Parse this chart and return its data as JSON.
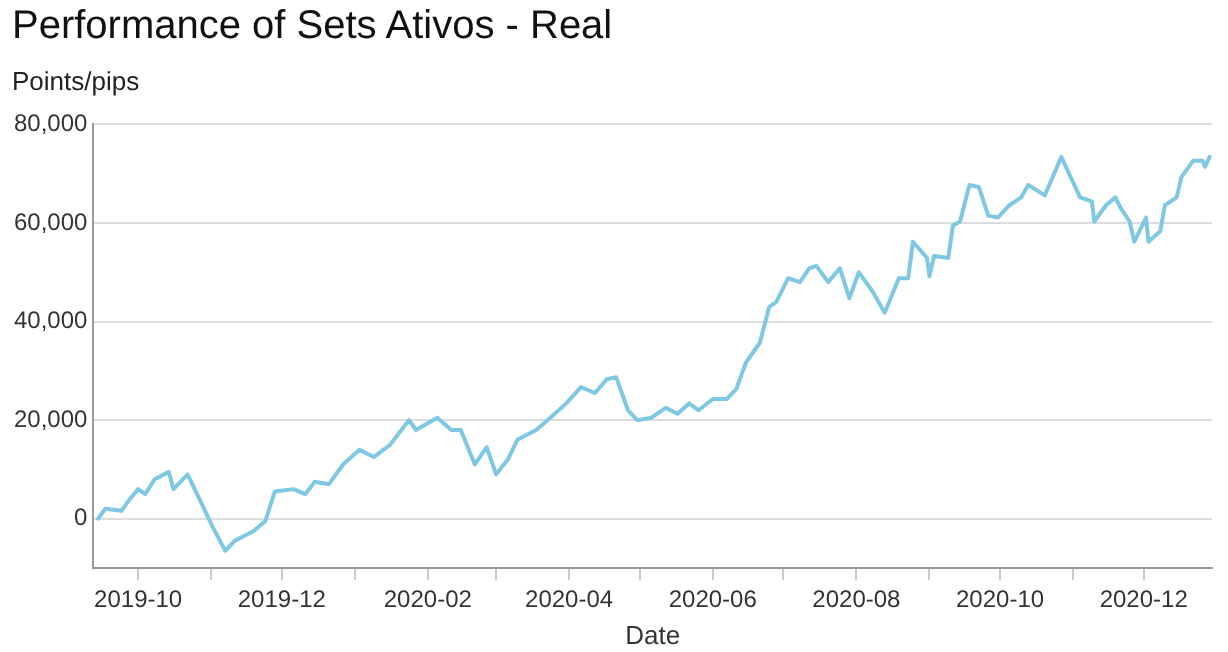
{
  "chart_data": {
    "type": "line",
    "title": "Performance of Sets Ativos - Real",
    "xlabel": "Date",
    "ylabel": "Points/pips",
    "x": [
      "2019-09-14",
      "2019-09-17",
      "2019-09-24",
      "2019-09-27",
      "2019-10-01",
      "2019-10-04",
      "2019-10-08",
      "2019-10-14",
      "2019-10-16",
      "2019-10-22",
      "2019-10-28",
      "2019-11-02",
      "2019-11-07",
      "2019-11-11",
      "2019-11-19",
      "2019-11-24",
      "2019-11-28",
      "2019-12-06",
      "2019-12-11",
      "2019-12-15",
      "2019-12-21",
      "2019-12-27",
      "2020-01-03",
      "2020-01-09",
      "2020-01-16",
      "2020-01-24",
      "2020-01-27",
      "2020-02-05",
      "2020-02-11",
      "2020-02-15",
      "2020-02-21",
      "2020-02-26",
      "2020-03-01",
      "2020-03-06",
      "2020-03-10",
      "2020-03-18",
      "2020-03-24",
      "2020-03-31",
      "2020-04-06",
      "2020-04-12",
      "2020-04-17",
      "2020-04-21",
      "2020-04-26",
      "2020-04-30",
      "2020-05-06",
      "2020-05-12",
      "2020-05-17",
      "2020-05-22",
      "2020-05-26",
      "2020-06-01",
      "2020-06-07",
      "2020-06-11",
      "2020-06-15",
      "2020-06-21",
      "2020-06-25",
      "2020-06-28",
      "2020-07-03",
      "2020-07-08",
      "2020-07-12",
      "2020-07-15",
      "2020-07-20",
      "2020-07-25",
      "2020-07-29",
      "2020-08-02",
      "2020-08-08",
      "2020-08-13",
      "2020-08-19",
      "2020-08-23",
      "2020-08-25",
      "2020-08-31",
      "2020-09-01",
      "2020-09-03",
      "2020-09-09",
      "2020-09-11",
      "2020-09-14",
      "2020-09-18",
      "2020-09-22",
      "2020-09-26",
      "2020-09-30",
      "2020-10-05",
      "2020-10-10",
      "2020-10-13",
      "2020-10-20",
      "2020-10-27",
      "2020-10-31",
      "2020-11-04",
      "2020-11-09",
      "2020-11-10",
      "2020-11-15",
      "2020-11-19",
      "2020-11-21",
      "2020-11-25",
      "2020-11-27",
      "2020-12-02",
      "2020-12-03",
      "2020-12-08",
      "2020-12-10",
      "2020-12-15",
      "2020-12-17",
      "2020-12-22",
      "2020-12-26",
      "2020-12-27",
      "2020-12-29"
    ],
    "series": [
      {
        "color": "#7ec8e3",
        "values": [
          0,
          2000,
          1600,
          3700,
          6000,
          5000,
          8000,
          9500,
          6000,
          9000,
          3000,
          -2000,
          -6500,
          -4500,
          -2500,
          -500,
          5500,
          6000,
          5000,
          7500,
          7000,
          11000,
          14000,
          12500,
          15000,
          20000,
          18000,
          20500,
          18000,
          18000,
          11000,
          14500,
          9000,
          12000,
          16000,
          18000,
          20500,
          23500,
          26700,
          25500,
          28300,
          28700,
          22000,
          20000,
          20500,
          22500,
          21300,
          23400,
          22000,
          24300,
          24300,
          26300,
          31600,
          35700,
          43000,
          44000,
          48800,
          48000,
          50800,
          51300,
          48000,
          50800,
          44700,
          50000,
          46000,
          41800,
          48800,
          48800,
          56200,
          52900,
          49200,
          53300,
          52900,
          59500,
          60300,
          67700,
          67300,
          61500,
          61100,
          63600,
          65200,
          67700,
          65600,
          73400,
          69300,
          65200,
          64400,
          60300,
          63600,
          65200,
          63200,
          60300,
          56200,
          61100,
          56200,
          58300,
          63600,
          65200,
          69300,
          72600,
          72600,
          71400,
          73400
        ]
      }
    ],
    "xlim": [
      "2019-09-12",
      "2020-12-30"
    ],
    "xticks": [
      {
        "value": "2019-10",
        "label": "2019-10"
      },
      {
        "value": "2019-11",
        "label": null
      },
      {
        "value": "2019-12",
        "label": "2019-12"
      },
      {
        "value": "2020-01",
        "label": null
      },
      {
        "value": "2020-02",
        "label": "2020-02"
      },
      {
        "value": "2020-03",
        "label": null
      },
      {
        "value": "2020-04",
        "label": "2020-04"
      },
      {
        "value": "2020-05",
        "label": null
      },
      {
        "value": "2020-06",
        "label": "2020-06"
      },
      {
        "value": "2020-07",
        "label": null
      },
      {
        "value": "2020-08",
        "label": "2020-08"
      },
      {
        "value": "2020-09",
        "label": null
      },
      {
        "value": "2020-10",
        "label": "2020-10"
      },
      {
        "value": "2020-11",
        "label": null
      },
      {
        "value": "2020-12",
        "label": "2020-12"
      }
    ],
    "ylim": [
      -10000,
      80000
    ],
    "yticks": [
      {
        "value": 0,
        "label": "0"
      },
      {
        "value": 20000,
        "label": "20,000"
      },
      {
        "value": 40000,
        "label": "40,000"
      },
      {
        "value": 60000,
        "label": "60,000"
      },
      {
        "value": 80000,
        "label": "80,000"
      }
    ],
    "grid": "y",
    "legend": false,
    "marker": "none",
    "line_style": "solid"
  }
}
